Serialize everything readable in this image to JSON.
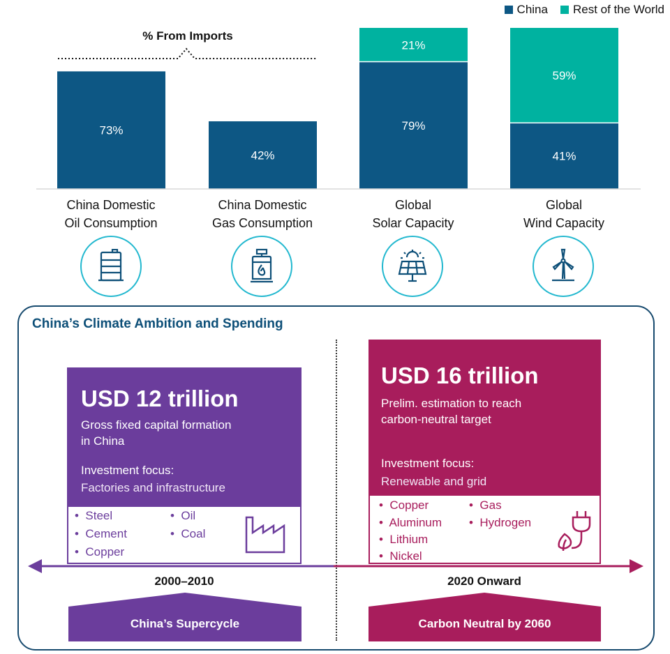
{
  "legend": [
    {
      "label": "China",
      "color": "#0d5784"
    },
    {
      "label": "Rest of the World",
      "color": "#00b2a0"
    }
  ],
  "imports_label": "% From Imports",
  "chart_data": {
    "type": "bar",
    "categories": [
      "China Domestic Oil Consumption",
      "China Domestic Gas Consumption",
      "Global Solar Capacity",
      "Global Wind Capacity"
    ],
    "category_lines": [
      [
        "China Domestic",
        "Oil Consumption"
      ],
      [
        "China Domestic",
        "Gas Consumption"
      ],
      [
        "Global",
        "Solar Capacity"
      ],
      [
        "Global",
        "Wind Capacity"
      ]
    ],
    "series": [
      {
        "name": "China",
        "values": [
          73,
          42,
          79,
          41
        ],
        "color": "#0d5784"
      },
      {
        "name": "Rest of the World",
        "values": [
          null,
          null,
          21,
          59
        ],
        "color": "#00b2a0"
      }
    ],
    "value_labels": [
      [
        "73%",
        null
      ],
      [
        "42%",
        null
      ],
      [
        "79%",
        "21%"
      ],
      [
        "41%",
        "59%"
      ]
    ],
    "ylim": [
      0,
      100
    ]
  },
  "icons": [
    "oil-barrel-icon",
    "gas-cylinder-icon",
    "solar-panel-icon",
    "wind-turbine-icon"
  ],
  "panel": {
    "title": "China’s Climate Ambition and Spending",
    "left": {
      "amount": "USD 12 trillion",
      "desc_line1": "Gross fixed capital formation",
      "desc_line2": "in China",
      "focus_heading": "Investment focus:",
      "focus_text": "Factories and infrastructure",
      "items_col1": [
        "Steel",
        "Cement",
        "Copper"
      ],
      "items_col2": [
        "Oil",
        "Coal"
      ],
      "period": "2000–2010",
      "banner": "China’s Supercycle",
      "color": "#6b3d9c"
    },
    "right": {
      "amount": "USD 16 trillion",
      "desc_line1": "Prelim. estimation to reach",
      "desc_line2": "carbon-neutral target",
      "focus_heading": "Investment focus:",
      "focus_text": "Renewable and grid",
      "items_col1": [
        "Copper",
        "Aluminum",
        "Lithium",
        "Nickel"
      ],
      "items_col2": [
        "Gas",
        "Hydrogen"
      ],
      "period": "2020 Onward",
      "banner": "Carbon Neutral by 2060",
      "color": "#a81d5c"
    }
  }
}
